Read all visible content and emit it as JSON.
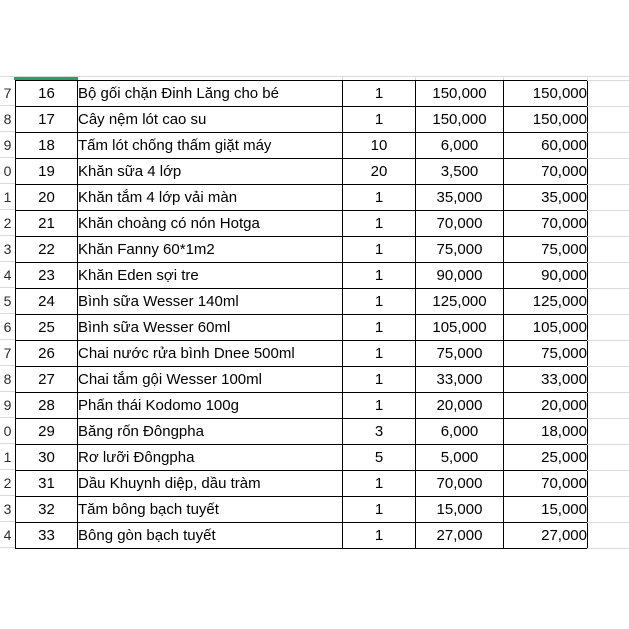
{
  "colors": {
    "accent_green": "#21a366",
    "table_border": "#000000",
    "gridline": "#d9d9d9",
    "text": "#000000"
  },
  "table": {
    "rows": [
      {
        "row_header": "7",
        "no": "16",
        "item": "Bộ gối chặn Đinh Lăng cho bé",
        "qty": "1",
        "unit_price": "150,000",
        "total": "150,000"
      },
      {
        "row_header": "8",
        "no": "17",
        "item": "Cây nệm lót cao su",
        "qty": "1",
        "unit_price": "150,000",
        "total": "150,000"
      },
      {
        "row_header": "9",
        "no": "18",
        "item": "Tấm lót chống thấm giặt máy",
        "qty": "10",
        "unit_price": "6,000",
        "total": "60,000"
      },
      {
        "row_header": "0",
        "no": "19",
        "item": "Khăn sữa 4 lớp",
        "qty": "20",
        "unit_price": "3,500",
        "total": "70,000"
      },
      {
        "row_header": "1",
        "no": "20",
        "item": "Khăn tắm 4 lớp vải màn",
        "qty": "1",
        "unit_price": "35,000",
        "total": "35,000"
      },
      {
        "row_header": "2",
        "no": "21",
        "item": "Khăn choàng có nón Hotga",
        "qty": "1",
        "unit_price": "70,000",
        "total": "70,000"
      },
      {
        "row_header": "3",
        "no": "22",
        "item": "Khăn Fanny 60*1m2",
        "qty": "1",
        "unit_price": "75,000",
        "total": "75,000"
      },
      {
        "row_header": "4",
        "no": "23",
        "item": "Khăn Eden sợi tre",
        "qty": "1",
        "unit_price": "90,000",
        "total": "90,000"
      },
      {
        "row_header": "5",
        "no": "24",
        "item": "Bình sữa Wesser 140ml",
        "qty": "1",
        "unit_price": "125,000",
        "total": "125,000"
      },
      {
        "row_header": "6",
        "no": "25",
        "item": "Bình sữa Wesser 60ml",
        "qty": "1",
        "unit_price": "105,000",
        "total": "105,000"
      },
      {
        "row_header": "7",
        "no": "26",
        "item": "Chai nước rửa bình Dnee 500ml",
        "qty": "1",
        "unit_price": "75,000",
        "total": "75,000"
      },
      {
        "row_header": "8",
        "no": "27",
        "item": "Chai tắm gội Wesser 100ml",
        "qty": "1",
        "unit_price": "33,000",
        "total": "33,000"
      },
      {
        "row_header": "9",
        "no": "28",
        "item": "Phấn thái Kodomo 100g",
        "qty": "1",
        "unit_price": "20,000",
        "total": "20,000"
      },
      {
        "row_header": "0",
        "no": "29",
        "item": "Băng rốn Đôngpha",
        "qty": "3",
        "unit_price": "6,000",
        "total": "18,000"
      },
      {
        "row_header": "1",
        "no": "30",
        "item": "Rơ lưỡi Đôngpha",
        "qty": "5",
        "unit_price": "5,000",
        "total": "25,000"
      },
      {
        "row_header": "2",
        "no": "31",
        "item": "Dầu Khuynh diệp, dầu tràm",
        "qty": "1",
        "unit_price": "70,000",
        "total": "70,000"
      },
      {
        "row_header": "3",
        "no": "32",
        "item": "Tăm bông bạch tuyết",
        "qty": "1",
        "unit_price": "15,000",
        "total": "15,000"
      },
      {
        "row_header": "4",
        "no": "33",
        "item": "Bông gòn bạch tuyết",
        "qty": "1",
        "unit_price": "27,000",
        "total": "27,000"
      }
    ]
  }
}
